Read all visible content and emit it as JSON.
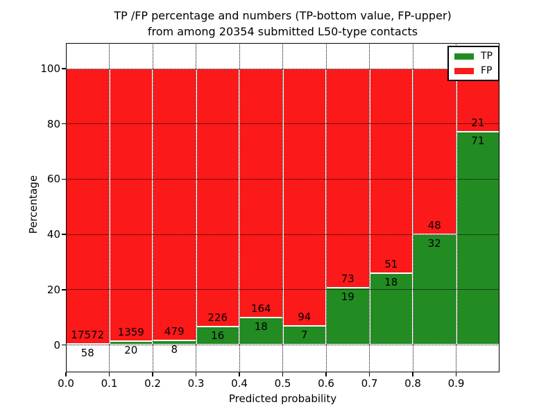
{
  "title": {
    "line1": "TP /FP percentage and numbers (TP-bottom value, FP-upper)",
    "line2": "from among 20354 submitted L50-type contacts"
  },
  "chart_data": {
    "type": "bar",
    "stacked": true,
    "normalized_to_percent": true,
    "title": "TP /FP percentage and numbers (TP-bottom value, FP-upper)\nfrom among 20354 submitted L50-type contacts",
    "xlabel": "Predicted probability",
    "ylabel": "Percentage",
    "total_contacts_in_title": 20354,
    "bin_left_edges": [
      0.0,
      0.1,
      0.2,
      0.3,
      0.4,
      0.5,
      0.6,
      0.7,
      0.8,
      0.9
    ],
    "bin_width": 0.1,
    "x_tick_labels": [
      "0.0",
      "0.1",
      "0.2",
      "0.3",
      "0.4",
      "0.5",
      "0.6",
      "0.7",
      "0.8",
      "0.9"
    ],
    "y_ticks": [
      0,
      20,
      40,
      60,
      80,
      100
    ],
    "y_tick_labels": [
      "0",
      "20",
      "40",
      "60",
      "80",
      "100"
    ],
    "xlim": [
      0.0,
      1.0
    ],
    "ylim": [
      -10,
      110
    ],
    "grid": {
      "style": "dotted",
      "color": "#000000",
      "axes": "both"
    },
    "series": [
      {
        "name": "TP",
        "color": "#228b22",
        "counts": [
          58,
          20,
          8,
          16,
          18,
          7,
          19,
          18,
          32,
          71
        ],
        "percent": [
          0.33,
          1.45,
          1.64,
          6.61,
          9.89,
          6.93,
          20.65,
          26.09,
          40.0,
          77.17
        ]
      },
      {
        "name": "FP",
        "color": "#fb1919",
        "counts": [
          17572,
          1359,
          479,
          226,
          164,
          94,
          73,
          51,
          48,
          21
        ],
        "percent": [
          99.67,
          98.55,
          98.36,
          93.39,
          90.11,
          93.07,
          79.35,
          73.91,
          60.0,
          22.83
        ]
      }
    ],
    "bar_edge_color": "#ffffff",
    "legend": {
      "position": "upper-right",
      "entries": [
        "TP",
        "FP"
      ]
    }
  }
}
